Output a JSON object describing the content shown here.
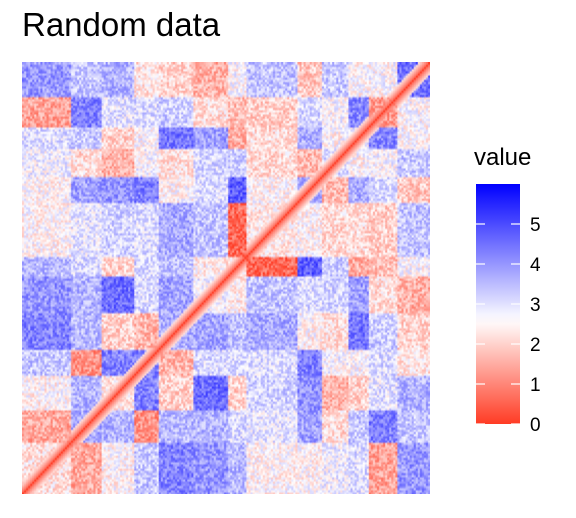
{
  "chart_data": {
    "type": "heatmap",
    "title": "Random data",
    "rows": 200,
    "cols": 200,
    "diagonal_value": 0,
    "value_range": [
      0,
      6
    ],
    "color_scale": {
      "low": "#FF3B24",
      "mid": "#FFFFFF",
      "high": "#0000FF",
      "midpoint": 2.6
    },
    "legend": {
      "title": "value",
      "placement": "right",
      "ticks": [
        {
          "value": 0,
          "label": "0"
        },
        {
          "value": 1,
          "label": "1"
        },
        {
          "value": 2,
          "label": "2"
        },
        {
          "value": 3,
          "label": "3"
        },
        {
          "value": 4,
          "label": "4"
        },
        {
          "value": 5,
          "label": "5"
        }
      ]
    }
  }
}
